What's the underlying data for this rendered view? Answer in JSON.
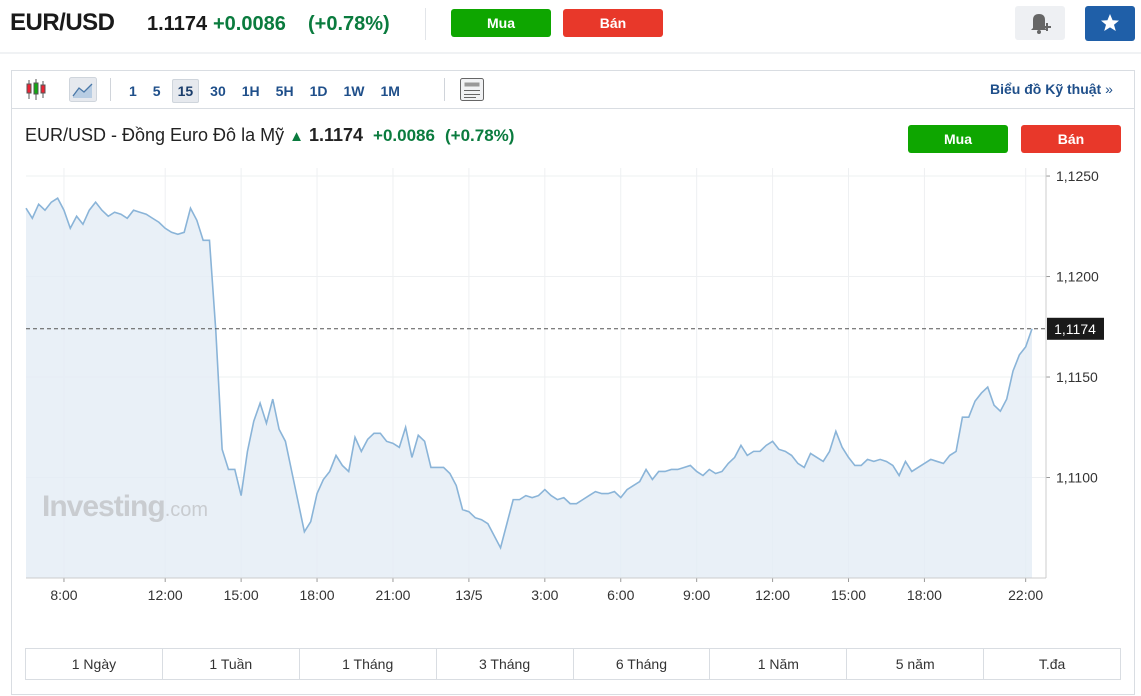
{
  "header": {
    "symbol": "EUR/USD",
    "price": "1.1174",
    "change": "+0.0086",
    "change_pct": "(+0.78%)",
    "buy": "Mua",
    "sell": "Bán"
  },
  "toolbar": {
    "intervals": [
      "1",
      "5",
      "15",
      "30",
      "1H",
      "5H",
      "1D",
      "1W",
      "1M"
    ],
    "active": "15",
    "link": "Biểu đồ Kỹ thuật"
  },
  "chart_header": {
    "title": "EUR/USD - Đồng Euro Đô la Mỹ",
    "price": "1.1174",
    "change": "+0.0086",
    "change_pct": "(+0.78%)",
    "buy": "Mua",
    "sell": "Bán"
  },
  "watermark": {
    "brand": "Investing",
    "suffix": ".com"
  },
  "chart_data": {
    "type": "area",
    "color": "#8ab4d8",
    "fill": "#e3ecf5",
    "grid": true,
    "categories": [
      null,
      null,
      null,
      null,
      null,
      null,
      "8:00",
      null,
      null,
      null,
      null,
      null,
      null,
      null,
      null,
      null,
      null,
      null,
      null,
      null,
      null,
      null,
      "12:00",
      null,
      null,
      null,
      null,
      null,
      null,
      null,
      null,
      null,
      null,
      null,
      "15:00",
      null,
      null,
      null,
      null,
      null,
      null,
      null,
      null,
      null,
      null,
      null,
      "18:00",
      null,
      null,
      null,
      null,
      null,
      null,
      null,
      null,
      null,
      null,
      null,
      "21:00",
      null,
      null,
      null,
      null,
      null,
      null,
      null,
      null,
      null,
      null,
      null,
      "13/5",
      null,
      null,
      null,
      null,
      null,
      null,
      null,
      null,
      null,
      null,
      null,
      "3:00",
      null,
      null,
      null,
      null,
      null,
      null,
      null,
      null,
      null,
      null,
      null,
      "6:00",
      null,
      null,
      null,
      null,
      null,
      null,
      null,
      null,
      null,
      null,
      null,
      "9:00",
      null,
      null,
      null,
      null,
      null,
      null,
      null,
      null,
      null,
      null,
      null,
      "12:00",
      null,
      null,
      null,
      null,
      null,
      null,
      null,
      null,
      null,
      null,
      null,
      "15:00",
      null,
      null,
      null,
      null,
      null,
      null,
      null,
      null,
      null,
      null,
      null,
      "18:00",
      null,
      null,
      null,
      null,
      null,
      null,
      null,
      null,
      null,
      null,
      null,
      null,
      null,
      null,
      null,
      "22:00",
      null
    ],
    "values": [
      1.1234,
      1.1229,
      1.1236,
      1.1233,
      1.1237,
      1.1239,
      1.1233,
      1.1224,
      1.123,
      1.1226,
      1.1233,
      1.1237,
      1.1233,
      1.123,
      1.1232,
      1.1231,
      1.1229,
      1.1233,
      1.1232,
      1.1231,
      1.1229,
      1.1227,
      1.1224,
      1.1222,
      1.1221,
      1.1222,
      1.1234,
      1.1228,
      1.1218,
      1.1218,
      1.1173,
      1.1114,
      1.1104,
      1.1104,
      1.1091,
      1.1113,
      1.1128,
      1.1137,
      1.1127,
      1.1139,
      1.1124,
      1.1118,
      1.1103,
      1.1088,
      1.1073,
      1.1078,
      1.1092,
      1.1099,
      1.1103,
      1.1111,
      1.1106,
      1.1103,
      1.112,
      1.1113,
      1.1119,
      1.1122,
      1.1122,
      1.1118,
      1.1117,
      1.1115,
      1.1125,
      1.111,
      1.1121,
      1.1118,
      1.1105,
      1.1105,
      1.1105,
      1.1102,
      1.1096,
      1.1084,
      1.1083,
      1.108,
      1.1079,
      1.1077,
      1.1071,
      1.1065,
      1.1077,
      1.1089,
      1.1089,
      1.1091,
      1.109,
      1.1091,
      1.1094,
      1.1091,
      1.1089,
      1.109,
      1.1087,
      1.1087,
      1.1089,
      1.1091,
      1.1093,
      1.1092,
      1.1092,
      1.1093,
      1.109,
      1.1094,
      1.1096,
      1.1098,
      1.1104,
      1.1099,
      1.1103,
      1.1103,
      1.1104,
      1.1104,
      1.1105,
      1.1106,
      1.1103,
      1.1101,
      1.1104,
      1.1102,
      1.1103,
      1.1107,
      1.111,
      1.1116,
      1.1111,
      1.1113,
      1.1113,
      1.1116,
      1.1118,
      1.1114,
      1.1113,
      1.1111,
      1.1107,
      1.1105,
      1.1112,
      1.111,
      1.1108,
      1.1113,
      1.1123,
      1.1115,
      1.111,
      1.1106,
      1.1106,
      1.1109,
      1.1108,
      1.1109,
      1.1108,
      1.1106,
      1.1101,
      1.1108,
      1.1103,
      1.1105,
      1.1107,
      1.1109,
      1.1108,
      1.1107,
      1.1111,
      1.1113,
      1.113,
      1.113,
      1.1138,
      1.1142,
      1.1145,
      1.1136,
      1.1133,
      1.1139,
      1.1153,
      1.1161,
      1.1165,
      1.1174
    ],
    "ylim": [
      1.105,
      1.1254
    ],
    "yticks": [
      {
        "value": 1.11,
        "label": "1,1100"
      },
      {
        "value": 1.115,
        "label": "1,1150"
      },
      {
        "value": 1.12,
        "label": "1,1200"
      },
      {
        "value": 1.125,
        "label": "1,1250"
      }
    ],
    "last_price": {
      "value": 1.1174,
      "label": "1,1174"
    }
  },
  "ranges": [
    "1 Ngày",
    "1 Tuần",
    "1 Tháng",
    "3 Tháng",
    "6 Tháng",
    "1 Năm",
    "5 năm",
    "T.đa"
  ]
}
